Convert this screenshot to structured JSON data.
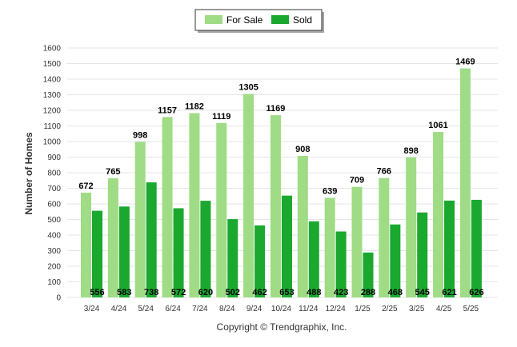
{
  "chart_data": {
    "type": "bar",
    "categories": [
      "3/24",
      "4/24",
      "5/24",
      "6/24",
      "7/24",
      "8/24",
      "9/24",
      "10/24",
      "11/24",
      "12/24",
      "1/25",
      "2/25",
      "3/25",
      "4/25",
      "5/25"
    ],
    "series": [
      {
        "name": "For Sale",
        "color": "#9fdc85",
        "values": [
          672,
          765,
          998,
          1157,
          1182,
          1119,
          1305,
          1169,
          908,
          639,
          709,
          766,
          898,
          1061,
          1469
        ]
      },
      {
        "name": "Sold",
        "color": "#1aa82e",
        "values": [
          556,
          583,
          738,
          572,
          620,
          502,
          462,
          653,
          488,
          423,
          288,
          468,
          545,
          621,
          626
        ]
      }
    ],
    "ylabel": "Number of Homes",
    "ylim": [
      0,
      1600
    ],
    "yticks": [
      0,
      100,
      200,
      300,
      400,
      500,
      600,
      700,
      800,
      900,
      1000,
      1100,
      1200,
      1300,
      1400,
      1500,
      1600
    ],
    "grid": true,
    "legend": "top-center"
  },
  "copyright": "Copyright © Trendgraphix, Inc."
}
